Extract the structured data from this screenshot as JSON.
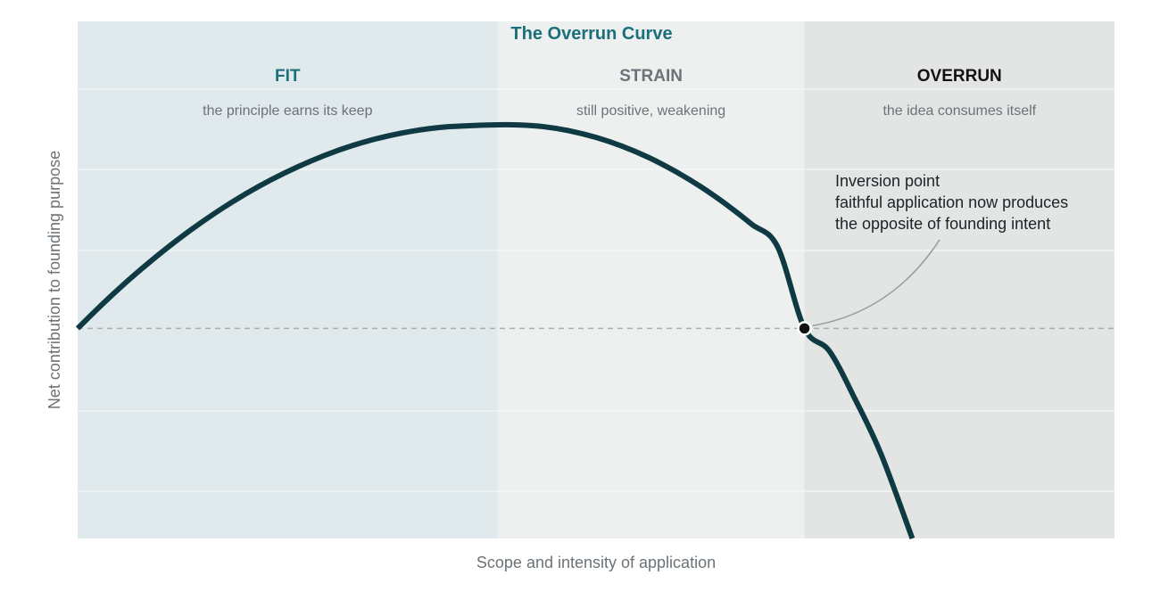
{
  "chart_data": {
    "type": "line",
    "title": "The Overrun Curve",
    "xlabel": "Scope and intensity of application",
    "ylabel": "Net contribution to founding purpose",
    "grid": true,
    "xlim": [
      0,
      1
    ],
    "ylim": [
      -1.3,
      1.9
    ],
    "zones": [
      {
        "label": "FIT",
        "description": "the principle earns its keep",
        "x_start": 0,
        "x_end": 0.405,
        "fill": "#e0e9eb",
        "label_color": "#1b6f7a"
      },
      {
        "label": "STRAIN",
        "description": "still positive, weakening",
        "x_start": 0.405,
        "x_end": 0.701,
        "fill": "#eef0f0",
        "label_color": "#6b7378"
      },
      {
        "label": "OVERRUN",
        "description": "the idea consumes itself",
        "x_start": 0.701,
        "x_end": 1,
        "fill": "#e3e5e5",
        "label_color": "#111111"
      }
    ],
    "series": [
      {
        "color": "#0f3a44",
        "x": [
          0,
          0.025,
          0.05,
          0.075,
          0.1,
          0.125,
          0.15,
          0.175,
          0.2,
          0.225,
          0.25,
          0.275,
          0.3,
          0.325,
          0.35,
          0.375,
          0.405,
          0.425,
          0.45,
          0.475,
          0.5,
          0.525,
          0.55,
          0.575,
          0.6,
          0.625,
          0.65,
          0.675,
          0.701,
          0.725,
          0.75,
          0.775,
          0.805
        ],
        "y": [
          0,
          0.157,
          0.304,
          0.44,
          0.566,
          0.681,
          0.786,
          0.88,
          0.963,
          1.036,
          1.099,
          1.151,
          1.192,
          1.223,
          1.244,
          1.254,
          1.26,
          1.259,
          1.248,
          1.222,
          1.182,
          1.128,
          1.06,
          0.977,
          0.881,
          0.77,
          0.645,
          0.506,
          0,
          -0.14,
          -0.44,
          -0.78,
          -1.3
        ]
      }
    ],
    "inversion_point": {
      "x": 0.701,
      "y": 0
    },
    "annotations": [
      {
        "lines": [
          "Inversion point",
          "faithful application now produces",
          "the opposite of founding intent"
        ]
      }
    ]
  },
  "colors": {
    "curve": "#0f3a44",
    "title": "#1b6f7a",
    "axis_text": "#6b7378",
    "baseline": "#a9aeb1",
    "grid": "#f6f8f8",
    "leader": "#9aa0a3",
    "annotation_text": "#1c2226"
  }
}
